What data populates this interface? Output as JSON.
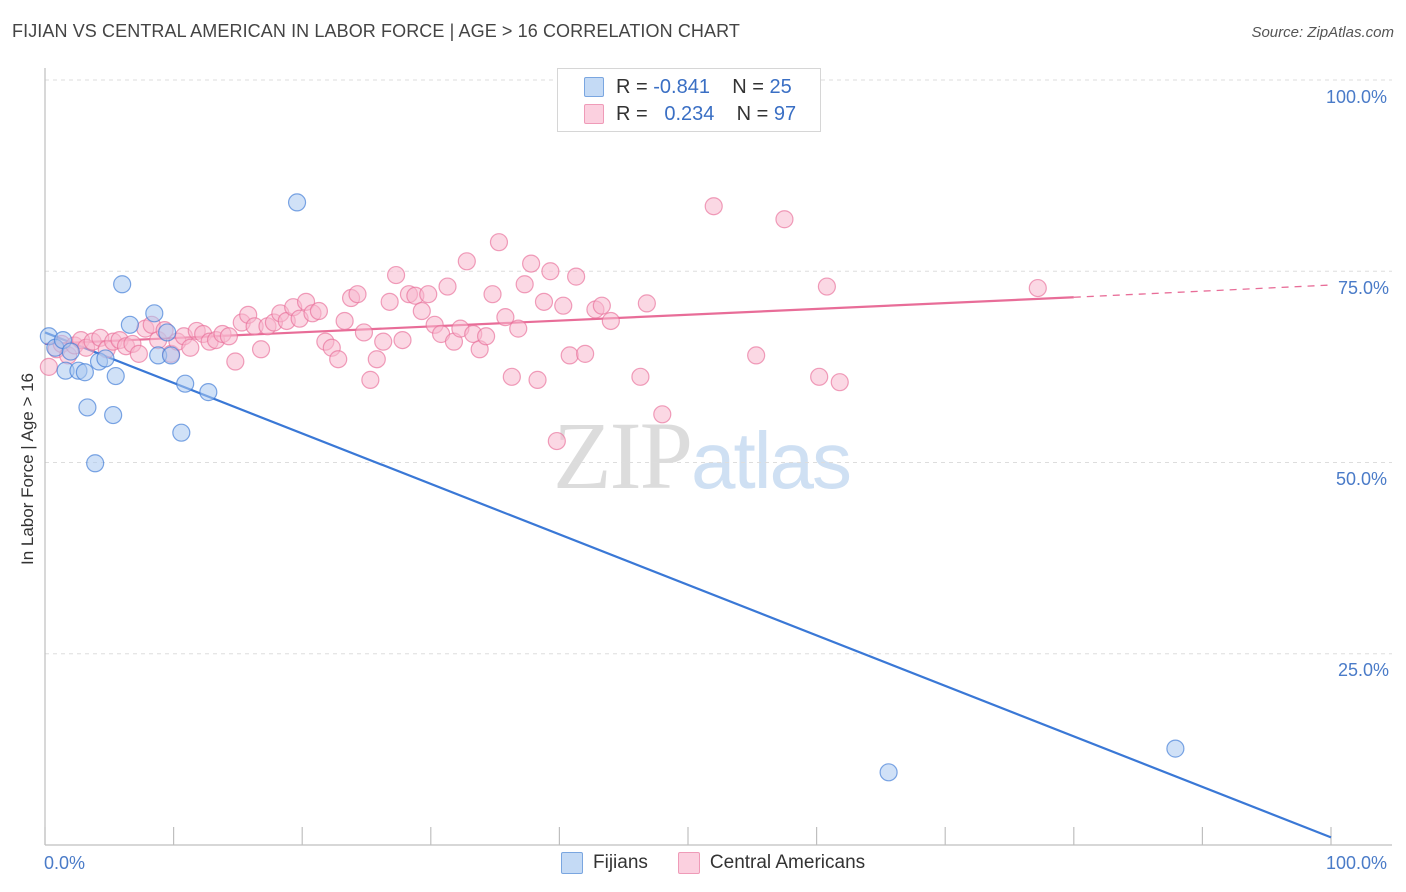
{
  "title": "FIJIAN VS CENTRAL AMERICAN IN LABOR FORCE | AGE > 16 CORRELATION CHART",
  "source": "Source: ZipAtlas.com",
  "watermark": {
    "zip": "ZIP",
    "atlas": "atlas"
  },
  "legend": {
    "fijians": {
      "r_label": "R = ",
      "r_value": "-0.841",
      "n_label": "N = ",
      "n_value": "25",
      "color": "#a9c8f0"
    },
    "central_americans": {
      "r_label": "R = ",
      "r_value": "0.234",
      "n_label": "N = ",
      "n_value": "97",
      "color": "#f7b8cd"
    }
  },
  "bottom_legend": {
    "fijians": "Fijians",
    "central_americans": "Central Americans"
  },
  "chart_data": {
    "type": "scatter",
    "title": "FIJIAN VS CENTRAL AMERICAN IN LABOR FORCE | AGE > 16 CORRELATION CHART",
    "xlabel": "",
    "ylabel": "In Labor Force | Age > 16",
    "xlim": [
      0,
      100
    ],
    "ylim": [
      0,
      100
    ],
    "x_tick_labels": [
      "0.0%",
      "100.0%"
    ],
    "y_tick_labels": [
      "100.0%",
      "75.0%",
      "50.0%",
      "25.0%"
    ],
    "y_ticks": [
      100,
      75,
      50,
      25
    ],
    "grid": true,
    "series": [
      {
        "name": "Fijians",
        "color": "#3a78d6",
        "fill": "#a9c8f0",
        "points": [
          [
            0.3,
            66.5
          ],
          [
            0.8,
            65.0
          ],
          [
            1.4,
            66.0
          ],
          [
            1.6,
            62.0
          ],
          [
            2.0,
            64.5
          ],
          [
            2.6,
            62.0
          ],
          [
            3.1,
            61.8
          ],
          [
            3.3,
            57.2
          ],
          [
            3.9,
            49.9
          ],
          [
            4.2,
            63.2
          ],
          [
            4.7,
            63.6
          ],
          [
            5.3,
            56.2
          ],
          [
            5.5,
            61.3
          ],
          [
            6.0,
            73.3
          ],
          [
            6.6,
            68.0
          ],
          [
            8.5,
            69.5
          ],
          [
            8.8,
            64.0
          ],
          [
            9.5,
            67.0
          ],
          [
            9.8,
            64.0
          ],
          [
            10.6,
            53.9
          ],
          [
            10.9,
            60.3
          ],
          [
            12.7,
            59.2
          ],
          [
            19.6,
            84.0
          ],
          [
            65.6,
            9.5
          ],
          [
            87.9,
            12.6
          ]
        ],
        "trendline": {
          "x": [
            0,
            100
          ],
          "y": [
            67.0,
            1.0
          ]
        }
      },
      {
        "name": "Central Americans",
        "color": "#e86d98",
        "fill": "#f7b8cd",
        "points": [
          [
            0.3,
            62.5
          ],
          [
            0.9,
            64.8
          ],
          [
            1.3,
            65.5
          ],
          [
            1.8,
            64.0
          ],
          [
            2.3,
            65.3
          ],
          [
            2.8,
            66.0
          ],
          [
            3.2,
            65.0
          ],
          [
            3.7,
            65.8
          ],
          [
            4.3,
            66.3
          ],
          [
            4.8,
            64.8
          ],
          [
            5.3,
            65.8
          ],
          [
            5.8,
            66.0
          ],
          [
            6.3,
            65.2
          ],
          [
            6.8,
            65.5
          ],
          [
            7.3,
            64.2
          ],
          [
            7.8,
            67.5
          ],
          [
            8.3,
            68.0
          ],
          [
            8.8,
            66.0
          ],
          [
            9.3,
            67.3
          ],
          [
            9.8,
            64.2
          ],
          [
            10.3,
            65.8
          ],
          [
            10.8,
            66.5
          ],
          [
            11.3,
            65.0
          ],
          [
            11.8,
            67.2
          ],
          [
            12.3,
            66.8
          ],
          [
            12.8,
            65.8
          ],
          [
            13.3,
            66.0
          ],
          [
            13.8,
            66.8
          ],
          [
            14.3,
            66.5
          ],
          [
            14.8,
            63.2
          ],
          [
            15.3,
            68.3
          ],
          [
            15.8,
            69.3
          ],
          [
            16.3,
            67.8
          ],
          [
            16.8,
            64.8
          ],
          [
            17.3,
            67.8
          ],
          [
            17.8,
            68.3
          ],
          [
            18.3,
            69.5
          ],
          [
            18.8,
            68.5
          ],
          [
            19.3,
            70.3
          ],
          [
            19.8,
            68.8
          ],
          [
            20.3,
            71.0
          ],
          [
            20.8,
            69.5
          ],
          [
            21.3,
            69.8
          ],
          [
            21.8,
            65.8
          ],
          [
            22.3,
            65.0
          ],
          [
            22.8,
            63.5
          ],
          [
            23.3,
            68.5
          ],
          [
            23.8,
            71.5
          ],
          [
            24.3,
            72.0
          ],
          [
            24.8,
            67.0
          ],
          [
            25.3,
            60.8
          ],
          [
            25.8,
            63.5
          ],
          [
            26.3,
            65.8
          ],
          [
            26.8,
            71.0
          ],
          [
            27.3,
            74.5
          ],
          [
            27.8,
            66.0
          ],
          [
            28.3,
            72.0
          ],
          [
            28.8,
            71.8
          ],
          [
            29.3,
            69.8
          ],
          [
            29.8,
            72.0
          ],
          [
            30.3,
            68.0
          ],
          [
            30.8,
            66.8
          ],
          [
            31.3,
            73.0
          ],
          [
            31.8,
            65.8
          ],
          [
            32.3,
            67.5
          ],
          [
            32.8,
            76.3
          ],
          [
            33.3,
            66.8
          ],
          [
            33.8,
            64.8
          ],
          [
            34.3,
            66.5
          ],
          [
            34.8,
            72.0
          ],
          [
            35.3,
            78.8
          ],
          [
            35.8,
            69.0
          ],
          [
            36.3,
            61.2
          ],
          [
            36.8,
            67.5
          ],
          [
            37.3,
            73.3
          ],
          [
            37.8,
            76.0
          ],
          [
            38.3,
            60.8
          ],
          [
            38.8,
            71.0
          ],
          [
            39.3,
            75.0
          ],
          [
            39.8,
            52.8
          ],
          [
            40.3,
            70.5
          ],
          [
            40.8,
            64.0
          ],
          [
            41.3,
            74.3
          ],
          [
            42.0,
            64.2
          ],
          [
            42.8,
            70.0
          ],
          [
            43.3,
            70.5
          ],
          [
            44.0,
            68.5
          ],
          [
            46.3,
            61.2
          ],
          [
            46.8,
            70.8
          ],
          [
            48.0,
            56.3
          ],
          [
            52.0,
            83.5
          ],
          [
            55.3,
            64.0
          ],
          [
            57.5,
            81.8
          ],
          [
            60.2,
            61.2
          ],
          [
            60.8,
            73.0
          ],
          [
            61.8,
            60.5
          ],
          [
            77.2,
            72.8
          ]
        ],
        "trendline": {
          "x": [
            0,
            80
          ],
          "y": [
            65.5,
            71.6
          ]
        },
        "trendline_extension": {
          "x": [
            80,
            100
          ],
          "y": [
            71.6,
            73.2
          ]
        }
      }
    ]
  }
}
